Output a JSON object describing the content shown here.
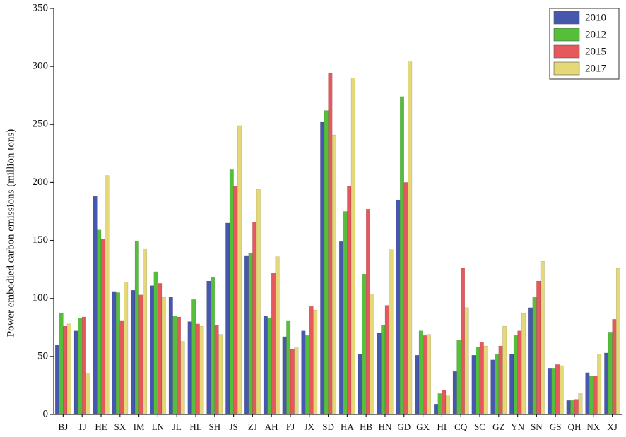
{
  "chart_data": {
    "type": "bar",
    "y_label": "Power embodied carbon emissions (million tons)",
    "categories": [
      "BJ",
      "TJ",
      "HE",
      "SX",
      "IM",
      "LN",
      "JL",
      "HL",
      "SH",
      "JS",
      "ZJ",
      "AH",
      "FJ",
      "JX",
      "SD",
      "HA",
      "HB",
      "HN",
      "GD",
      "GX",
      "HI",
      "CQ",
      "SC",
      "GZ",
      "YN",
      "SN",
      "GS",
      "QH",
      "NX",
      "XJ"
    ],
    "series": [
      {
        "name": "2010",
        "color": "#4757ad",
        "values": [
          60,
          72,
          188,
          106,
          107,
          111,
          101,
          80,
          115,
          165,
          137,
          85,
          67,
          72,
          252,
          149,
          52,
          70,
          185,
          51,
          9,
          37,
          51,
          47,
          52,
          92,
          40,
          12,
          36,
          53
        ]
      },
      {
        "name": "2012",
        "color": "#55bf3b",
        "values": [
          87,
          83,
          159,
          105,
          149,
          123,
          85,
          99,
          118,
          211,
          139,
          83,
          81,
          68,
          262,
          175,
          121,
          77,
          274,
          72,
          18,
          64,
          58,
          52,
          68,
          101,
          40,
          12,
          33,
          71
        ]
      },
      {
        "name": "2015",
        "color": "#e5585c",
        "values": [
          76,
          84,
          151,
          81,
          103,
          113,
          84,
          78,
          77,
          197,
          166,
          122,
          56,
          93,
          294,
          197,
          177,
          94,
          200,
          68,
          21,
          126,
          62,
          59,
          72,
          115,
          43,
          13,
          33,
          82
        ]
      },
      {
        "name": "2017",
        "color": "#e4d879",
        "values": [
          78,
          35,
          206,
          114,
          143,
          101,
          63,
          76,
          69,
          249,
          194,
          136,
          58,
          90,
          241,
          290,
          104,
          142,
          304,
          69,
          16,
          92,
          59,
          76,
          87,
          132,
          42,
          18,
          52,
          126
        ]
      }
    ],
    "ylim": [
      0,
      350
    ],
    "yticks": [
      0,
      50,
      100,
      150,
      200,
      250,
      300,
      350
    ],
    "legend": "upper right"
  }
}
